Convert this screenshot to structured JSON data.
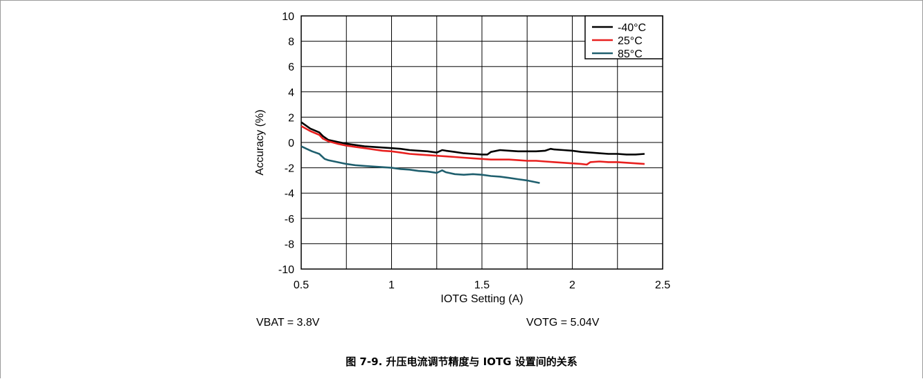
{
  "chart_data": {
    "type": "line",
    "xlabel": "IOTG Setting (A)",
    "ylabel": "Accuracy (%)",
    "xlim": [
      0.5,
      2.5
    ],
    "ylim": [
      -10,
      10
    ],
    "xticks": [
      "0.5",
      "1",
      "1.5",
      "2",
      "2.5"
    ],
    "yticks": [
      "10",
      "8",
      "6",
      "4",
      "2",
      "0",
      "-2",
      "-4",
      "-6",
      "-8",
      "-10"
    ],
    "grid": true,
    "legend_position": "top-right",
    "series": [
      {
        "name": "-40°C",
        "color": "#000000",
        "x": [
          0.5,
          0.55,
          0.6,
          0.62,
          0.65,
          0.7,
          0.75,
          0.8,
          0.85,
          0.9,
          0.95,
          1.0,
          1.05,
          1.1,
          1.15,
          1.2,
          1.25,
          1.28,
          1.3,
          1.35,
          1.4,
          1.45,
          1.5,
          1.53,
          1.55,
          1.6,
          1.65,
          1.7,
          1.75,
          1.8,
          1.85,
          1.88,
          1.9,
          1.95,
          2.0,
          2.05,
          2.1,
          2.15,
          2.2,
          2.25,
          2.3,
          2.35,
          2.4
        ],
        "y": [
          1.6,
          1.1,
          0.8,
          0.5,
          0.2,
          0.05,
          -0.1,
          -0.2,
          -0.3,
          -0.35,
          -0.4,
          -0.45,
          -0.5,
          -0.6,
          -0.65,
          -0.7,
          -0.8,
          -0.6,
          -0.65,
          -0.75,
          -0.85,
          -0.9,
          -0.95,
          -0.95,
          -0.75,
          -0.6,
          -0.65,
          -0.7,
          -0.7,
          -0.7,
          -0.65,
          -0.5,
          -0.55,
          -0.6,
          -0.65,
          -0.75,
          -0.8,
          -0.85,
          -0.9,
          -0.9,
          -0.95,
          -0.95,
          -0.9
        ]
      },
      {
        "name": "25°C",
        "color": "#e8201f",
        "x": [
          0.5,
          0.55,
          0.6,
          0.62,
          0.65,
          0.7,
          0.75,
          0.8,
          0.85,
          0.9,
          0.95,
          1.0,
          1.05,
          1.1,
          1.15,
          1.2,
          1.25,
          1.3,
          1.35,
          1.4,
          1.45,
          1.5,
          1.55,
          1.6,
          1.65,
          1.7,
          1.75,
          1.8,
          1.85,
          1.9,
          1.95,
          2.0,
          2.05,
          2.08,
          2.1,
          2.15,
          2.2,
          2.25,
          2.3,
          2.35,
          2.4
        ],
        "y": [
          1.3,
          0.9,
          0.6,
          0.3,
          0.1,
          -0.1,
          -0.25,
          -0.35,
          -0.45,
          -0.55,
          -0.65,
          -0.7,
          -0.8,
          -0.9,
          -0.95,
          -1.0,
          -1.05,
          -1.1,
          -1.15,
          -1.2,
          -1.25,
          -1.3,
          -1.35,
          -1.35,
          -1.35,
          -1.4,
          -1.45,
          -1.45,
          -1.5,
          -1.55,
          -1.6,
          -1.65,
          -1.7,
          -1.75,
          -1.55,
          -1.5,
          -1.55,
          -1.55,
          -1.6,
          -1.65,
          -1.7
        ]
      },
      {
        "name": "85°C",
        "color": "#1f5f6e",
        "x": [
          0.5,
          0.53,
          0.56,
          0.6,
          0.63,
          0.65,
          0.7,
          0.75,
          0.8,
          0.85,
          0.9,
          0.95,
          1.0,
          1.05,
          1.1,
          1.15,
          1.2,
          1.25,
          1.28,
          1.3,
          1.35,
          1.4,
          1.45,
          1.5,
          1.55,
          1.6,
          1.65,
          1.7,
          1.75,
          1.82
        ],
        "y": [
          -0.3,
          -0.5,
          -0.7,
          -0.9,
          -1.3,
          -1.4,
          -1.55,
          -1.7,
          -1.8,
          -1.85,
          -1.9,
          -1.95,
          -2.0,
          -2.1,
          -2.15,
          -2.25,
          -2.3,
          -2.4,
          -2.2,
          -2.35,
          -2.5,
          -2.55,
          -2.5,
          -2.55,
          -2.65,
          -2.7,
          -2.8,
          -2.9,
          -3.0,
          -3.2
        ]
      }
    ]
  },
  "notes": {
    "vbat": "VBAT = 3.8V",
    "votg": "VOTG = 5.04V"
  },
  "caption": "图 7-9. 升压电流调节精度与 IOTG 设置间的关系"
}
